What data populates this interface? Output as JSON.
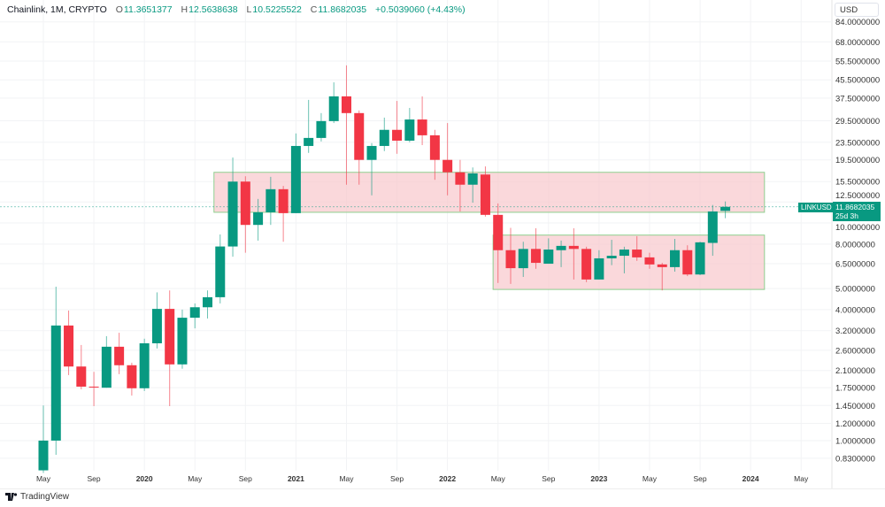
{
  "header": {
    "symbol": "Chainlink, 1M, CRYPTO",
    "o_label": "O",
    "o_value": "11.3651377",
    "h_label": "H",
    "h_value": "12.5638638",
    "l_label": "L",
    "l_value": "10.5225522",
    "c_label": "C",
    "c_value": "11.8682035",
    "change": "+0.5039060 (+4.43%)"
  },
  "currency_button": "USD",
  "price_tag": {
    "symbol": "LINKUSD",
    "price": "11.8682035",
    "countdown": "25d 3h"
  },
  "branding": "TradingView",
  "colors": {
    "up": "#089981",
    "down": "#F23645",
    "zone_fill": "#f8c8cc",
    "zone_border": "#8fcf8f"
  },
  "chart_data": {
    "type": "candlestick",
    "title": "Chainlink, 1M, CRYPTO",
    "start_month": "2019-05",
    "interval": "1M",
    "ylim": [
      0.727,
      105.9
    ],
    "yscale": "log",
    "y_ticks": [
      "84.0000000",
      "68.0000000",
      "55.5000000",
      "45.5000000",
      "37.5000000",
      "29.5000000",
      "23.5000000",
      "19.5000000",
      "15.5000000",
      "12.5000000",
      "10.0000000",
      "8.0000000",
      "6.5000000",
      "5.0000000",
      "4.0000000",
      "3.2000000",
      "2.6000000",
      "2.1000000",
      "1.7500000",
      "1.4500000",
      "1.2000000",
      "1.0000000",
      "0.8300000"
    ],
    "x_ticks": [
      {
        "label": "May",
        "month_index": 0
      },
      {
        "label": "Sep",
        "month_index": 4
      },
      {
        "label": "2020",
        "month_index": 8
      },
      {
        "label": "May",
        "month_index": 12
      },
      {
        "label": "Sep",
        "month_index": 16
      },
      {
        "label": "2021",
        "month_index": 20
      },
      {
        "label": "May",
        "month_index": 24
      },
      {
        "label": "Sep",
        "month_index": 28
      },
      {
        "label": "2022",
        "month_index": 32
      },
      {
        "label": "May",
        "month_index": 36
      },
      {
        "label": "Sep",
        "month_index": 40
      },
      {
        "label": "2023",
        "month_index": 44
      },
      {
        "label": "May",
        "month_index": 48
      },
      {
        "label": "Sep",
        "month_index": 52
      },
      {
        "label": "2024",
        "month_index": 56
      },
      {
        "label": "May",
        "month_index": 60
      }
    ],
    "ohlc": [
      [
        0.73,
        1.45,
        0.71,
        1.0
      ],
      [
        1.0,
        5.1,
        0.86,
        3.38
      ],
      [
        3.38,
        3.96,
        2.0,
        2.19
      ],
      [
        2.19,
        2.75,
        1.72,
        1.77
      ],
      [
        1.77,
        2.07,
        1.44,
        1.76
      ],
      [
        1.75,
        3.02,
        1.75,
        2.7
      ],
      [
        2.7,
        3.13,
        2.02,
        2.22
      ],
      [
        2.22,
        2.28,
        1.61,
        1.74
      ],
      [
        1.74,
        2.94,
        1.69,
        2.8
      ],
      [
        2.8,
        4.8,
        2.65,
        4.03
      ],
      [
        4.03,
        4.9,
        1.44,
        2.24
      ],
      [
        2.24,
        4.0,
        2.14,
        3.67
      ],
      [
        3.67,
        4.27,
        3.28,
        4.1
      ],
      [
        4.1,
        4.9,
        3.64,
        4.56
      ],
      [
        4.56,
        8.86,
        4.27,
        7.8
      ],
      [
        7.8,
        20.0,
        7.0,
        15.5
      ],
      [
        15.5,
        16.4,
        7.3,
        9.8
      ],
      [
        9.8,
        12.9,
        8.3,
        11.2
      ],
      [
        11.2,
        16.3,
        9.8,
        14.3
      ],
      [
        14.3,
        14.8,
        8.2,
        11.1
      ],
      [
        11.1,
        25.8,
        11.1,
        22.6
      ],
      [
        22.6,
        36.8,
        21.0,
        24.6
      ],
      [
        24.6,
        32.0,
        23.7,
        29.4
      ],
      [
        29.4,
        44.3,
        28.8,
        38.2
      ],
      [
        38.2,
        53.0,
        15.0,
        32.0
      ],
      [
        32.0,
        32.9,
        15.0,
        19.5
      ],
      [
        19.5,
        23.3,
        13.4,
        22.6
      ],
      [
        22.6,
        30.5,
        21.4,
        26.8
      ],
      [
        26.8,
        36.4,
        20.8,
        23.9
      ],
      [
        23.9,
        33.8,
        23.5,
        29.9
      ],
      [
        29.9,
        38.2,
        22.8,
        25.3
      ],
      [
        25.3,
        26.8,
        15.8,
        19.5
      ],
      [
        19.5,
        28.8,
        13.4,
        17.1
      ],
      [
        17.1,
        19.5,
        11.3,
        15.0
      ],
      [
        15.0,
        18.0,
        12.4,
        16.9
      ],
      [
        16.7,
        18.2,
        10.7,
        10.9
      ],
      [
        10.9,
        12.3,
        5.3,
        7.5
      ],
      [
        7.5,
        9.5,
        5.25,
        6.2
      ],
      [
        6.2,
        8.2,
        5.65,
        7.6
      ],
      [
        7.6,
        9.46,
        6.16,
        6.56
      ],
      [
        6.5,
        8.5,
        6.5,
        7.55
      ],
      [
        7.5,
        8.3,
        6.27,
        7.85
      ],
      [
        7.85,
        9.46,
        5.5,
        7.6
      ],
      [
        7.6,
        7.78,
        5.35,
        5.5
      ],
      [
        5.5,
        7.5,
        5.5,
        6.88
      ],
      [
        6.88,
        8.37,
        6.4,
        7.07
      ],
      [
        7.07,
        7.78,
        5.87,
        7.55
      ],
      [
        7.55,
        8.7,
        6.7,
        6.95
      ],
      [
        6.95,
        7.3,
        6.16,
        6.45
      ],
      [
        6.45,
        6.56,
        4.9,
        6.27
      ],
      [
        6.27,
        8.45,
        5.98,
        7.5
      ],
      [
        7.5,
        7.9,
        5.7,
        5.8
      ],
      [
        5.8,
        8.2,
        5.76,
        8.15
      ],
      [
        8.1,
        12.1,
        7.07,
        11.3
      ],
      [
        11.3651377,
        12.5638638,
        10.5225522,
        11.8682035
      ]
    ],
    "last_price": 11.8682035,
    "zones": [
      {
        "name": "upper-resistance-zone",
        "from_month_index": 14,
        "to_month_index": 57.1,
        "price_high": 17.1,
        "price_low": 11.2
      },
      {
        "name": "lower-range-zone",
        "from_month_index": 36.1,
        "to_month_index": 57.1,
        "price_high": 8.8,
        "price_low": 4.95
      }
    ]
  }
}
